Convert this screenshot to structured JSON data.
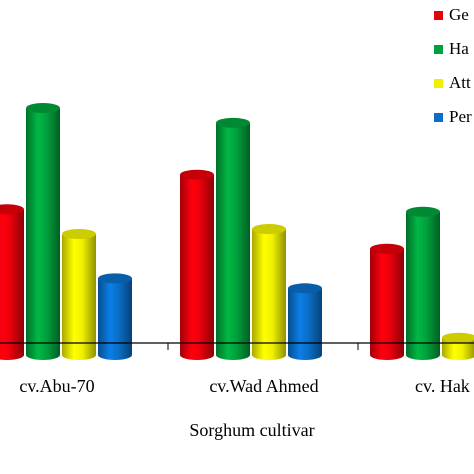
{
  "chart_data": {
    "type": "bar",
    "title": "",
    "xlabel": "Sorghum cultivar",
    "ylabel": "",
    "categories": [
      "cv.Abu-70",
      "cv.Wad Ahmed",
      "cv. Hak"
    ],
    "series": [
      {
        "name": "Ge",
        "color": "#e8000b",
        "values": [
          59,
          73,
          43
        ]
      },
      {
        "name": "Ha",
        "color": "#00a03c",
        "values": [
          100,
          94,
          58
        ]
      },
      {
        "name": "Att",
        "color": "#f0f000",
        "values": [
          49,
          51,
          7
        ]
      },
      {
        "name": "Per",
        "color": "#0a6ec8",
        "values": [
          31,
          27,
          0
        ]
      }
    ],
    "ylim": [
      0,
      100
    ],
    "grid": false,
    "legend": "top-right"
  }
}
